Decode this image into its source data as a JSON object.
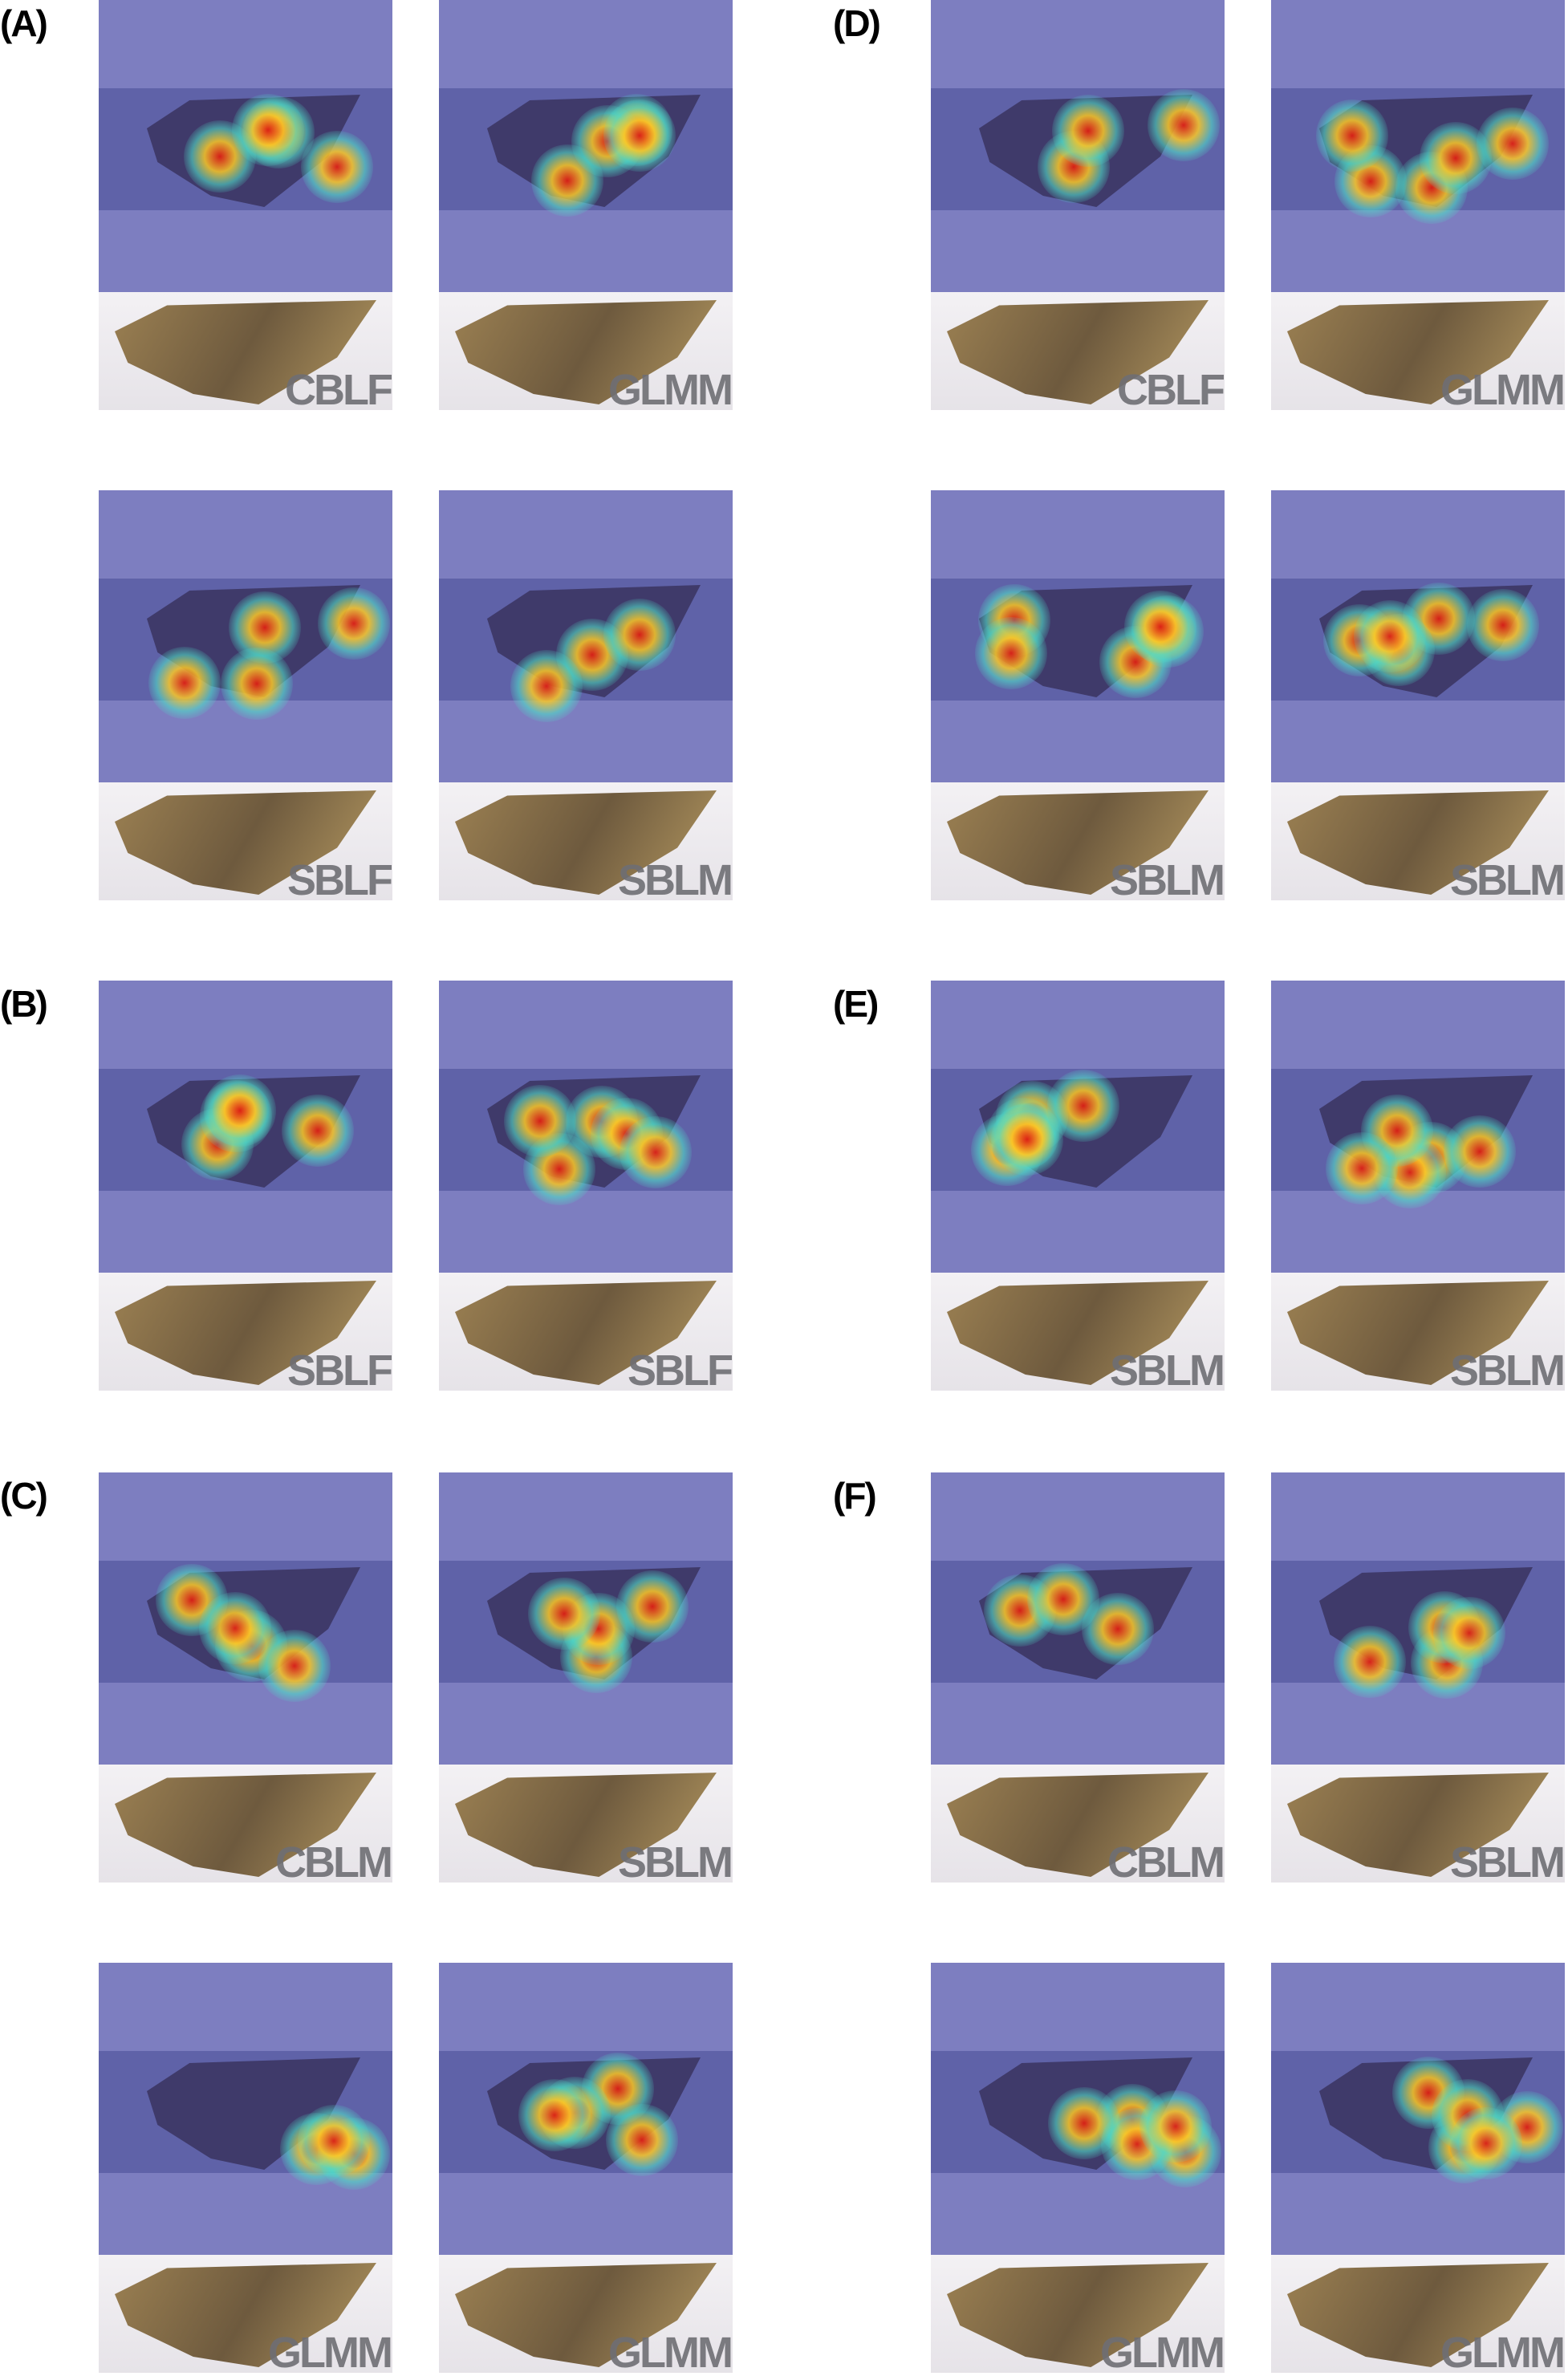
{
  "panels": [
    {
      "label": "(A)",
      "tiles": [
        "CBLF",
        "GLMM",
        "SBLF",
        "SBLM"
      ]
    },
    {
      "label": "(B)",
      "tiles": [
        "SBLF",
        "SBLF"
      ]
    },
    {
      "label": "(C)",
      "tiles": [
        "CBLM",
        "SBLM",
        "GLMM",
        "GLMM"
      ]
    },
    {
      "label": "(D)",
      "tiles": [
        "CBLF",
        "GLMM",
        "SBLM",
        "SBLM"
      ]
    },
    {
      "label": "(E)",
      "tiles": [
        "SBLM",
        "SBLM"
      ]
    },
    {
      "label": "(F)",
      "tiles": [
        "CBLM",
        "SBLM",
        "GLMM",
        "GLMM"
      ]
    }
  ]
}
